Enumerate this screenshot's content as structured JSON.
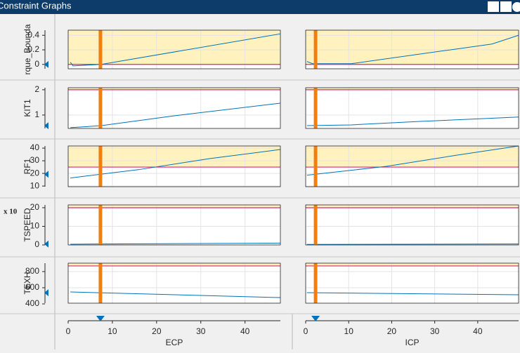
{
  "header": {
    "title": "Constraint Graphs"
  },
  "chart_data": {
    "type": "constraint-grid",
    "exponent_label": "x 10",
    "columns": [
      {
        "xlabel": "ECP",
        "xlim": [
          0,
          48
        ],
        "xticks": [
          0,
          10,
          20,
          30,
          40
        ],
        "current": 7.3
      },
      {
        "xlabel": "ICP",
        "xlim": [
          0,
          49.5
        ],
        "xticks": [
          0,
          10,
          20,
          30,
          40
        ],
        "current": 2.3
      }
    ],
    "rows": [
      {
        "label": "rque_Bounda",
        "ylim": [
          -0.06,
          0.47
        ],
        "yticks": [
          0,
          0.2,
          0.4
        ],
        "constraint": 0,
        "curves": [
          {
            "x": [
              0.5,
              1.1,
              7.5,
              48
            ],
            "values": [
              0.03,
              -0.02,
              0.0,
              0.42
            ]
          },
          {
            "x": [
              0.3,
              1.6,
              10.6,
              43.3,
              49.5
            ],
            "values": [
              0.04,
              0.01,
              0.01,
              0.28,
              0.4
            ]
          }
        ]
      },
      {
        "label": "KIT1",
        "ylim": [
          0.47,
          2.08
        ],
        "yticks": [
          1,
          2
        ],
        "constraint": 2,
        "curves": [
          {
            "x": [
              0.5,
              7.5,
              24,
              48
            ],
            "values": [
              0.5,
              0.58,
              0.97,
              1.47
            ]
          },
          {
            "x": [
              0.3,
              10.6,
              27,
              49.5
            ],
            "values": [
              0.58,
              0.61,
              0.75,
              0.92
            ]
          }
        ]
      },
      {
        "label": "RF1",
        "ylim": [
          9.5,
          41.7
        ],
        "yticks": [
          10,
          20,
          30,
          40
        ],
        "constraint": 25,
        "curves": [
          {
            "x": [
              0.5,
              16,
              32,
              48
            ],
            "values": [
              16.4,
              23,
              31.7,
              38.9
            ]
          },
          {
            "x": [
              0.3,
              18.8,
              35.1,
              49.5
            ],
            "values": [
              18.6,
              25.6,
              34.4,
              41.7
            ]
          }
        ]
      },
      {
        "label": "TSPEED",
        "ylim": [
          0,
          21.5
        ],
        "yticks": [
          0,
          10,
          20
        ],
        "constraint": 20,
        "curves": [
          {
            "x": [
              0.5,
              48
            ],
            "values": [
              0.4,
              1.0
            ]
          },
          {
            "x": [
              0.3,
              49.5
            ],
            "values": [
              0.3,
              0.5
            ]
          }
        ]
      },
      {
        "label": "TEXH",
        "ylim": [
          409,
          904
        ],
        "yticks": [
          400,
          600,
          800
        ],
        "constraint": 870,
        "curves": [
          {
            "x": [
              0.5,
              48
            ],
            "values": [
              548,
              478
            ]
          },
          {
            "x": [
              0.3,
              49.5
            ],
            "values": [
              539,
              513
            ]
          }
        ]
      }
    ]
  }
}
